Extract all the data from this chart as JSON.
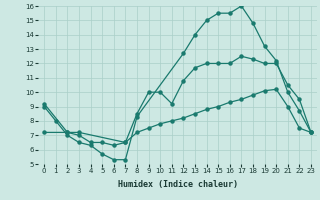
{
  "xlabel": "Humidex (Indice chaleur)",
  "bg_color": "#cde8e3",
  "grid_color": "#aacfc8",
  "line_color": "#1a7a6e",
  "xlim": [
    -0.5,
    23.5
  ],
  "ylim": [
    5,
    16
  ],
  "xticks": [
    0,
    1,
    2,
    3,
    4,
    5,
    6,
    7,
    8,
    9,
    10,
    11,
    12,
    13,
    14,
    15,
    16,
    17,
    18,
    19,
    20,
    21,
    22,
    23
  ],
  "yticks": [
    5,
    6,
    7,
    8,
    9,
    10,
    11,
    12,
    13,
    14,
    15,
    16
  ],
  "line1": {
    "x": [
      0,
      1,
      2,
      3,
      4,
      5,
      6,
      7,
      8,
      12,
      13,
      14,
      15,
      16,
      17,
      18,
      19,
      20,
      21,
      22,
      23
    ],
    "y": [
      9,
      8,
      7,
      6.5,
      6.3,
      5.7,
      5.3,
      5.3,
      8.3,
      12.7,
      14.0,
      15.0,
      15.5,
      15.5,
      16.0,
      14.8,
      13.2,
      12.2,
      10.0,
      8.7,
      7.2
    ]
  },
  "line2": {
    "x": [
      0,
      2,
      3,
      7,
      8,
      9,
      10,
      11,
      12,
      13,
      14,
      15,
      16,
      17,
      18,
      19,
      20,
      21,
      22,
      23
    ],
    "y": [
      9.2,
      7.2,
      7.2,
      6.5,
      8.5,
      10.0,
      10.0,
      9.2,
      10.8,
      11.7,
      12.0,
      12.0,
      12.0,
      12.5,
      12.3,
      12.0,
      12.0,
      10.5,
      9.5,
      7.2
    ]
  },
  "line3": {
    "x": [
      0,
      2,
      3,
      4,
      5,
      6,
      7,
      8,
      9,
      10,
      11,
      12,
      13,
      14,
      15,
      16,
      17,
      18,
      19,
      20,
      21,
      22,
      23
    ],
    "y": [
      7.2,
      7.2,
      7.0,
      6.5,
      6.5,
      6.3,
      6.5,
      7.2,
      7.5,
      7.8,
      8.0,
      8.2,
      8.5,
      8.8,
      9.0,
      9.3,
      9.5,
      9.8,
      10.1,
      10.2,
      9.0,
      7.5,
      7.2
    ]
  }
}
